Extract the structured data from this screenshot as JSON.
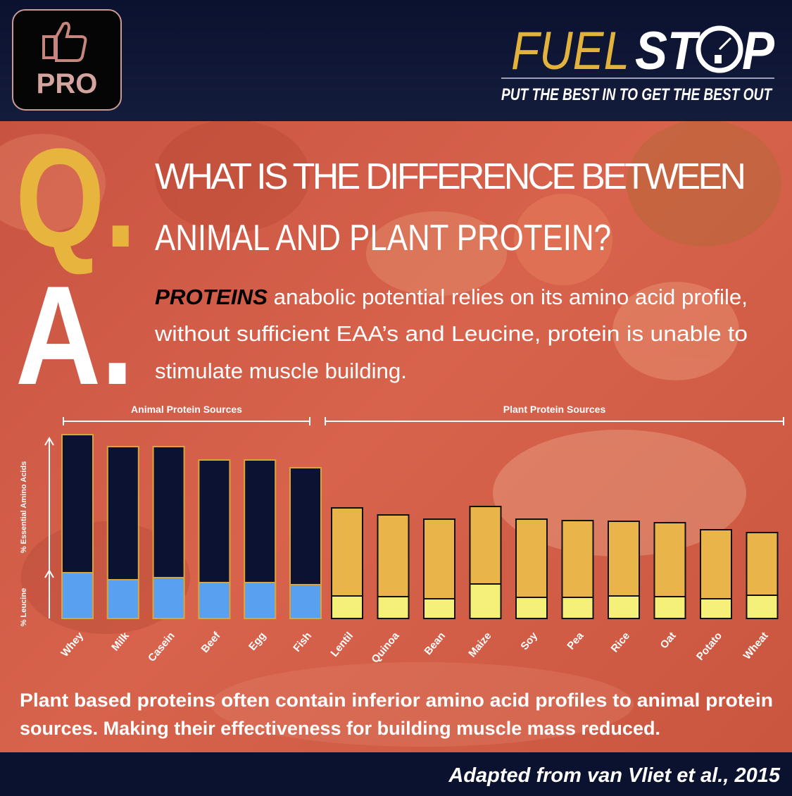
{
  "header": {
    "badge": "PRO",
    "brand": [
      "FUEL",
      "ST",
      "P"
    ],
    "tagline": "PUT THE BEST IN TO GET THE BEST OUT"
  },
  "question": {
    "letter": "Q.",
    "lines": [
      "WHAT IS THE DIFFERENCE BETWEEN",
      "ANIMAL AND PLANT PROTEIN?"
    ]
  },
  "answer": {
    "letter": "A.",
    "lead": "PROTEINS",
    "lines": [
      " anabolic potential relies on its amino acid profile,",
      "without sufficient EAA’s and Leucine, protein is unable to",
      "stimulate muscle building."
    ]
  },
  "chart_data": {
    "type": "bar",
    "ylabels": [
      "% Leucine",
      "% Essential Amino Acids"
    ],
    "ylim": [
      0,
      54
    ],
    "groups": [
      {
        "name": "Animal  Protein Sources",
        "categories": [
          "Whey",
          "Milk",
          "Casein",
          "Beef",
          "Egg",
          "Fish"
        ],
        "eaa_color": "#0b1232",
        "leucine_color": "#5aa0f0",
        "outline": "#d9a53a",
        "eaa": [
          52.2,
          48.8,
          48.8,
          45,
          45,
          42.8
        ],
        "leucine": [
          13,
          11,
          11.6,
          10.2,
          10.2,
          9.6
        ]
      },
      {
        "name": "Plant  Protein Sources",
        "categories": [
          "Lentil",
          "Quinoa",
          "Bean",
          "Maize",
          "Soy",
          "Pea",
          "Rice",
          "Oat",
          "Potato",
          "Wheat"
        ],
        "eaa_color": "#e9b54b",
        "leucine_color": "#f5f07a",
        "outline": "#111111",
        "eaa": [
          31.4,
          29.4,
          28.2,
          31.8,
          28.2,
          27.8,
          27.6,
          27.2,
          25.2,
          24.4
        ],
        "leucine": [
          6.4,
          6.2,
          5.6,
          9.8,
          6,
          6,
          6.4,
          6.2,
          5.6,
          6.6
        ]
      }
    ]
  },
  "conclusion": [
    "Plant based proteins often contain inferior amino acid profiles to animal protein",
    "sources. Making their effectiveness for building muscle mass reduced."
  ],
  "footer": "Adapted from van Vliet et al., 2015"
}
